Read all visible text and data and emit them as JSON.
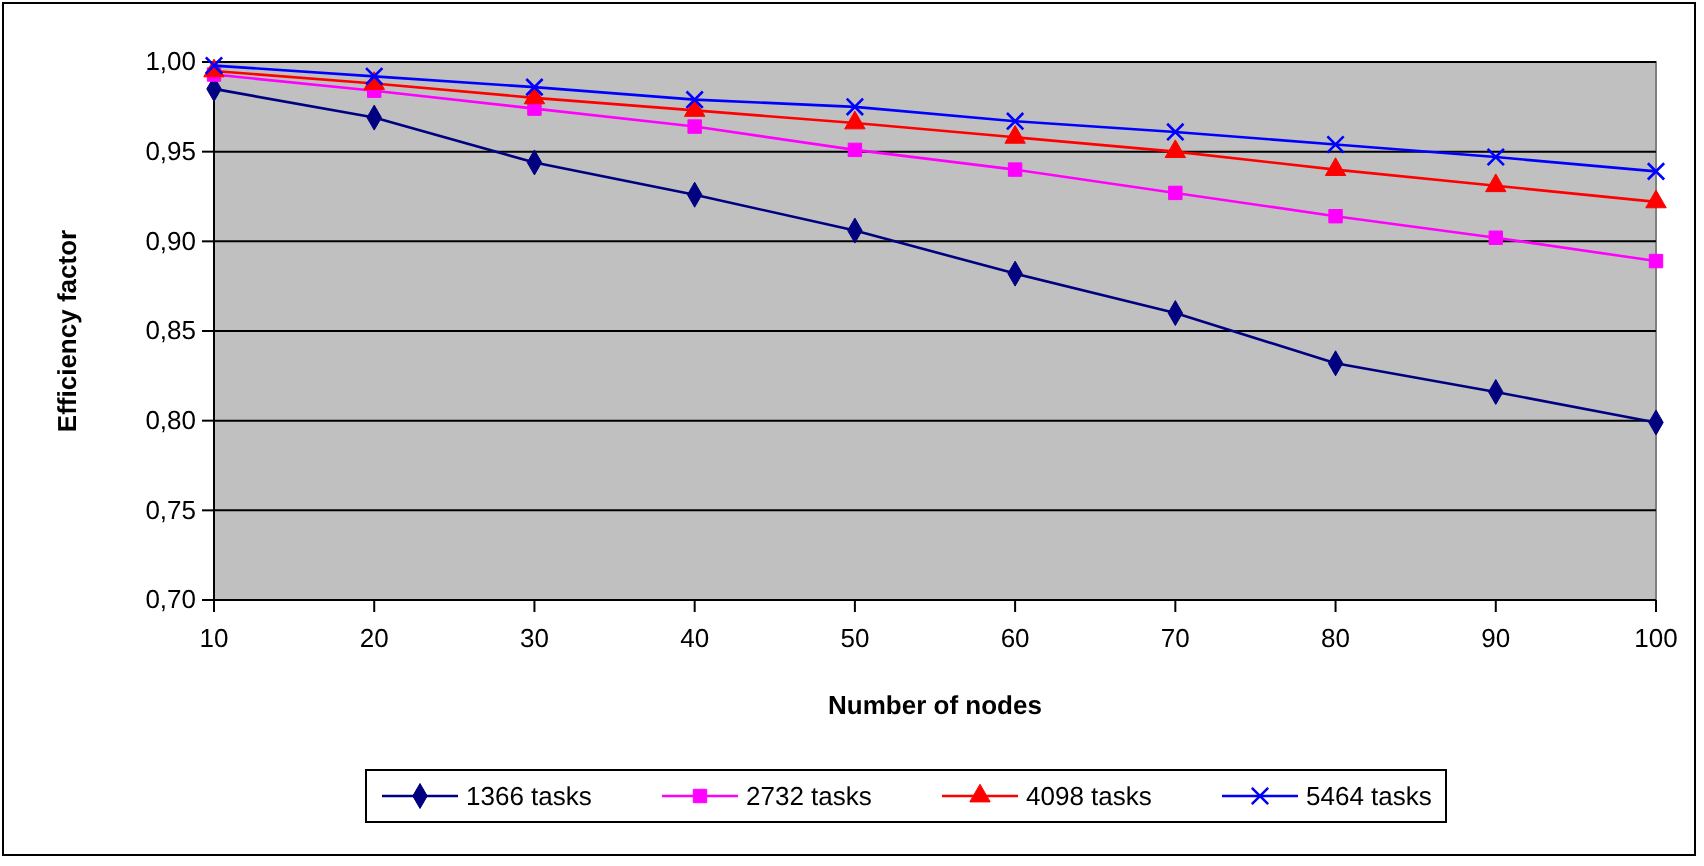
{
  "chart_data": {
    "type": "line",
    "xlabel": "Number of nodes",
    "ylabel": "Efficiency factor",
    "x": [
      10,
      20,
      30,
      40,
      50,
      60,
      70,
      80,
      90,
      100
    ],
    "xlim": [
      10,
      100
    ],
    "xticks": [
      10,
      20,
      30,
      40,
      50,
      60,
      70,
      80,
      90,
      100
    ],
    "ylim": [
      0.7,
      1.0
    ],
    "yticks": [
      {
        "value": 0.7,
        "label": "0,70"
      },
      {
        "value": 0.75,
        "label": "0,75"
      },
      {
        "value": 0.8,
        "label": "0,80"
      },
      {
        "value": 0.85,
        "label": "0,85"
      },
      {
        "value": 0.9,
        "label": "0,90"
      },
      {
        "value": 0.95,
        "label": "0,95"
      },
      {
        "value": 1.0,
        "label": "1,00"
      }
    ],
    "grid": "y",
    "legend": "bottom",
    "series": [
      {
        "name": "1366 tasks",
        "color": "#000080",
        "marker": "diamond",
        "values": [
          0.985,
          0.969,
          0.944,
          0.926,
          0.906,
          0.882,
          0.86,
          0.832,
          0.816,
          0.799
        ]
      },
      {
        "name": "2732 tasks",
        "color": "#ff00ff",
        "marker": "square",
        "values": [
          0.993,
          0.984,
          0.974,
          0.964,
          0.951,
          0.94,
          0.927,
          0.914,
          0.902,
          0.889
        ]
      },
      {
        "name": "4098 tasks",
        "color": "#ff0000",
        "marker": "triangle",
        "values": [
          0.995,
          0.988,
          0.98,
          0.973,
          0.966,
          0.958,
          0.95,
          0.94,
          0.931,
          0.922
        ]
      },
      {
        "name": "5464 tasks",
        "color": "#0000ff",
        "marker": "cross",
        "values": [
          0.998,
          0.992,
          0.986,
          0.979,
          0.975,
          0.967,
          0.961,
          0.954,
          0.947,
          0.939
        ]
      }
    ]
  }
}
